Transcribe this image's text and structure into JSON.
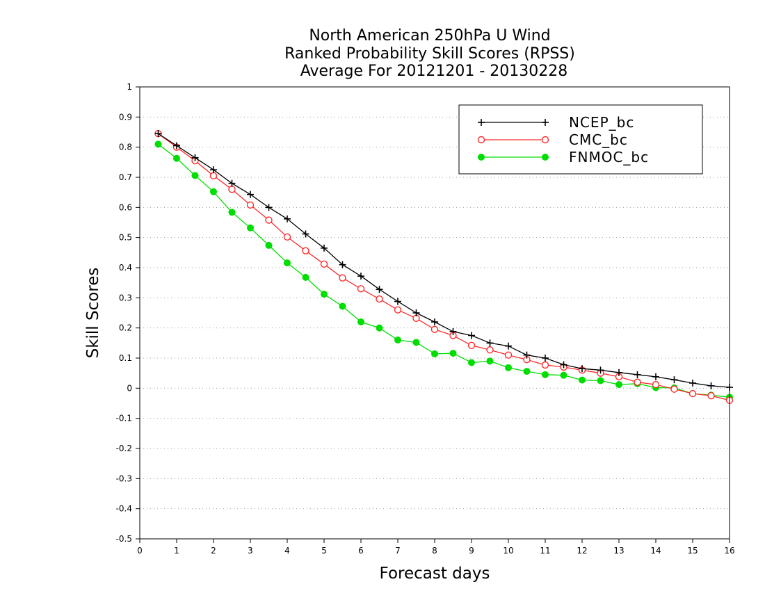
{
  "chart_data": {
    "type": "line",
    "title": [
      "North American 250hPa U Wind",
      "Ranked Probability Skill Scores (RPSS)",
      "Average For 20121201 - 20130228"
    ],
    "xlabel": "Forecast days",
    "ylabel": "Skill Scores",
    "xlim": [
      0,
      16
    ],
    "ylim": [
      -0.5,
      1
    ],
    "x_ticks": [
      0,
      1,
      2,
      3,
      4,
      5,
      6,
      7,
      8,
      9,
      10,
      11,
      12,
      13,
      14,
      15,
      16
    ],
    "y_ticks": [
      -0.5,
      -0.4,
      -0.3,
      -0.2,
      -0.1,
      0,
      0.1,
      0.2,
      0.3,
      0.4,
      0.5,
      0.6,
      0.7,
      0.8,
      0.9,
      1
    ],
    "y_tick_labels": [
      "-0.5",
      "-0.4",
      "-0.3",
      "-0.2",
      "-0.1",
      "0",
      "0.1",
      "0.2",
      "0.3",
      "0.4",
      "0.5",
      "0.6",
      "0.7",
      "0.8",
      "0.9",
      "1"
    ],
    "grid": "horizontal-dotted",
    "legend_position": "top-right",
    "x": [
      0.5,
      1,
      1.5,
      2,
      2.5,
      3,
      3.5,
      4,
      4.5,
      5,
      5.5,
      6,
      6.5,
      7,
      7.5,
      8,
      8.5,
      9,
      9.5,
      10,
      10.5,
      11,
      11.5,
      12,
      12.5,
      13,
      13.5,
      14,
      14.5,
      15,
      15.5,
      16
    ],
    "series": [
      {
        "name": "NCEP_bc",
        "color": "#000000",
        "marker": "plus",
        "values": [
          0.845,
          0.805,
          0.765,
          0.725,
          0.68,
          0.643,
          0.6,
          0.562,
          0.512,
          0.465,
          0.41,
          0.372,
          0.328,
          0.288,
          0.25,
          0.22,
          0.188,
          0.175,
          0.15,
          0.14,
          0.11,
          0.1,
          0.078,
          0.065,
          0.06,
          0.052,
          0.045,
          0.038,
          0.028,
          0.017,
          0.008,
          0.003
        ]
      },
      {
        "name": "CMC_bc",
        "color": "#ff2a2a",
        "marker": "open-circle",
        "values": [
          0.845,
          0.8,
          0.755,
          0.705,
          0.66,
          0.608,
          0.558,
          0.502,
          0.456,
          0.412,
          0.366,
          0.33,
          0.296,
          0.26,
          0.232,
          0.195,
          0.175,
          0.142,
          0.127,
          0.11,
          0.095,
          0.077,
          0.07,
          0.06,
          0.05,
          0.038,
          0.02,
          0.012,
          -0.003,
          -0.018,
          -0.025,
          -0.04
        ]
      },
      {
        "name": "FNMOC_bc",
        "color": "#00dd00",
        "marker": "filled-circle",
        "values": [
          0.81,
          0.763,
          0.706,
          0.652,
          0.584,
          0.532,
          0.474,
          0.416,
          0.368,
          0.312,
          0.272,
          0.22,
          0.2,
          0.16,
          0.152,
          0.114,
          0.116,
          0.085,
          0.09,
          0.068,
          0.056,
          0.045,
          0.043,
          0.027,
          0.025,
          0.012,
          0.015,
          0.002,
          0.001,
          -0.018,
          -0.023,
          -0.03
        ]
      }
    ]
  }
}
